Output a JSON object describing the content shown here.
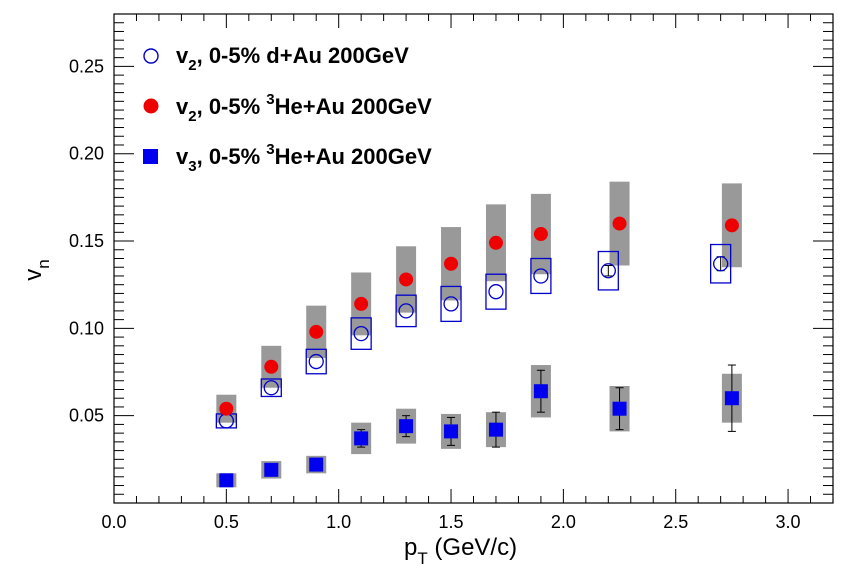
{
  "chart_data": {
    "type": "scatter",
    "xlabel": {
      "main": "p",
      "sub": "T",
      "rest": " (GeV/c)"
    },
    "ylabel": {
      "main": "v",
      "sub": "n"
    },
    "xlim": [
      0,
      3.2
    ],
    "ylim": [
      0,
      0.28
    ],
    "xticks": [
      0.0,
      0.5,
      1.0,
      1.5,
      2.0,
      2.5,
      3.0
    ],
    "xtick_labels": [
      "0.0",
      "0.5",
      "1.0",
      "1.5",
      "2.0",
      "2.5",
      "3.0"
    ],
    "yticks": [
      0.05,
      0.1,
      0.15,
      0.2,
      0.25
    ],
    "ytick_labels": [
      "0.05",
      "0.10",
      "0.15",
      "0.20",
      "0.25"
    ],
    "grid": false,
    "legend_position": "top-left",
    "series": [
      {
        "name": "v2, 0-5% d+Au 200GeV",
        "legend": {
          "v": "v",
          "sub": "2",
          "pre": ", 0-5% ",
          "sup": "",
          "post": "d+Au 200GeV"
        },
        "marker": "open-circle",
        "color": "#0000cc",
        "sys_style": "open-box",
        "x": [
          0.5,
          0.7,
          0.9,
          1.1,
          1.3,
          1.5,
          1.7,
          1.9,
          2.2,
          2.7
        ],
        "y": [
          0.047,
          0.066,
          0.081,
          0.097,
          0.11,
          0.114,
          0.121,
          0.13,
          0.133,
          0.137
        ],
        "stat_err": [
          0.001,
          0.001,
          0.001,
          0.001,
          0.001,
          0.002,
          0.002,
          0.002,
          0.003,
          0.004
        ],
        "sys_err": [
          0.004,
          0.005,
          0.007,
          0.009,
          0.009,
          0.01,
          0.01,
          0.01,
          0.011,
          0.011
        ]
      },
      {
        "name": "v2, 0-5% 3He+Au 200GeV",
        "legend": {
          "v": "v",
          "sub": "2",
          "pre": ", 0-5% ",
          "sup": "3",
          "post": "He+Au 200GeV"
        },
        "marker": "filled-circle",
        "color": "#ee0000",
        "sys_style": "gray-box",
        "x": [
          0.5,
          0.7,
          0.9,
          1.1,
          1.3,
          1.5,
          1.7,
          1.9,
          2.25,
          2.75
        ],
        "y": [
          0.054,
          0.078,
          0.098,
          0.114,
          0.128,
          0.137,
          0.149,
          0.154,
          0.16,
          0.159
        ],
        "stat_err": [
          0.001,
          0.001,
          0.001,
          0.001,
          0.001,
          0.001,
          0.001,
          0.001,
          0.002,
          0.003
        ],
        "sys_err": [
          0.008,
          0.012,
          0.015,
          0.018,
          0.019,
          0.021,
          0.022,
          0.023,
          0.024,
          0.024
        ]
      },
      {
        "name": "v3, 0-5% 3He+Au 200GeV",
        "legend": {
          "v": "v",
          "sub": "3",
          "pre": ", 0-5% ",
          "sup": "3",
          "post": "He+Au 200GeV"
        },
        "marker": "filled-square",
        "color": "#0000ee",
        "sys_style": "gray-box",
        "x": [
          0.5,
          0.7,
          0.9,
          1.1,
          1.3,
          1.5,
          1.7,
          1.9,
          2.25,
          2.75
        ],
        "y": [
          0.013,
          0.019,
          0.022,
          0.037,
          0.044,
          0.041,
          0.042,
          0.064,
          0.054,
          0.06
        ],
        "stat_err": [
          0.001,
          0.001,
          0.002,
          0.005,
          0.006,
          0.008,
          0.01,
          0.012,
          0.012,
          0.019
        ],
        "sys_err": [
          0.004,
          0.005,
          0.005,
          0.009,
          0.01,
          0.01,
          0.01,
          0.015,
          0.013,
          0.014
        ]
      }
    ]
  }
}
